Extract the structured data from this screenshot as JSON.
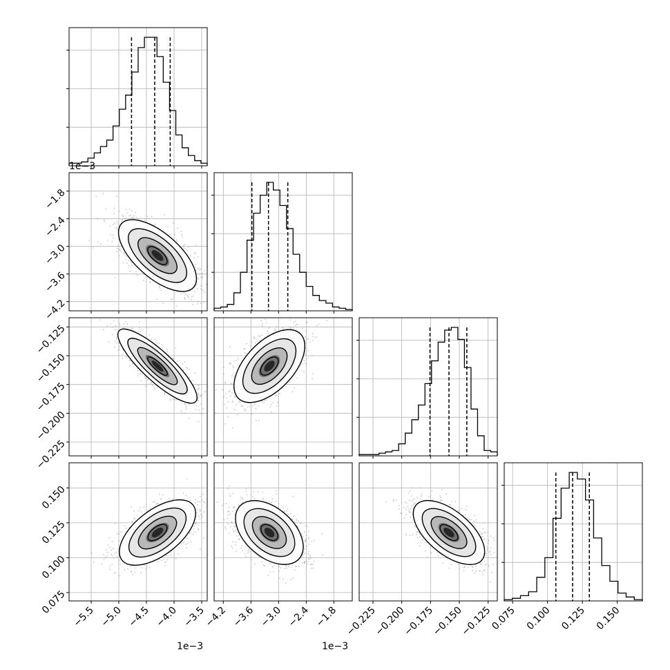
{
  "chart_data": {
    "type": "corner",
    "grid": true,
    "axis_offsets": [
      "1e−3",
      "1e−3",
      "1e−3"
    ],
    "parameters": [
      {
        "range": [
          -5.9,
          -3.4
        ],
        "ticks": [
          -5.5,
          -5.0,
          -4.5,
          -4.0,
          -3.5
        ],
        "tick_labels": [
          "−5.5",
          "−5.0",
          "−4.5",
          "−4.0",
          "−3.5"
        ],
        "quantiles": [
          -4.77,
          -4.35,
          -4.07
        ],
        "hist": [
          2,
          2,
          3,
          6,
          10,
          15,
          20,
          31,
          44,
          55,
          73,
          92,
          100,
          100,
          85,
          65,
          43,
          24,
          14,
          8,
          4,
          2
        ],
        "mean": -4.3,
        "std": 0.36
      },
      {
        "range": [
          -4.4,
          -1.4
        ],
        "ticks": [
          -4.2,
          -3.6,
          -3.0,
          -2.4,
          -1.8
        ],
        "tick_labels": [
          "−4.2",
          "−3.6",
          "−3.0",
          "−2.4",
          "−1.8"
        ],
        "quantiles": [
          -3.58,
          -3.22,
          -2.8
        ],
        "hist": [
          2,
          3,
          5,
          14,
          30,
          55,
          76,
          90,
          100,
          94,
          82,
          64,
          44,
          30,
          19,
          12,
          8,
          6,
          3,
          2,
          1
        ],
        "mean": -3.2,
        "std": 0.38
      },
      {
        "range": [
          -0.237,
          -0.117
        ],
        "ticks": [
          -0.225,
          -0.2,
          -0.175,
          -0.15,
          -0.125
        ],
        "tick_labels": [
          "−0.225",
          "−0.200",
          "−0.175",
          "−0.150",
          "−0.125"
        ],
        "quantiles": [
          -0.1755,
          -0.159,
          -0.1435
        ],
        "hist": [
          1,
          1,
          1,
          2,
          3,
          4,
          9,
          17,
          27,
          38,
          54,
          71,
          85,
          94,
          96,
          87,
          66,
          35,
          15,
          4,
          3
        ],
        "mean": -0.159,
        "std": 0.016
      },
      {
        "range": [
          0.069,
          0.168
        ],
        "ticks": [
          0.075,
          0.1,
          0.125,
          0.15
        ],
        "tick_labels": [
          "0.075",
          "0.100",
          "0.125",
          "0.150"
        ],
        "quantiles": [
          0.106,
          0.118,
          0.13
        ],
        "hist": [
          1,
          2,
          4,
          7,
          18,
          33,
          63,
          86,
          98,
          93,
          77,
          48,
          27,
          15,
          6,
          3,
          1
        ],
        "mean": 0.118,
        "std": 0.011
      }
    ],
    "correlations": [
      [
        0,
        1,
        -0.65
      ],
      [
        0,
        2,
        -0.85
      ],
      [
        1,
        2,
        0.55
      ],
      [
        0,
        3,
        0.6
      ],
      [
        1,
        3,
        -0.45
      ],
      [
        2,
        3,
        -0.6
      ]
    ]
  }
}
